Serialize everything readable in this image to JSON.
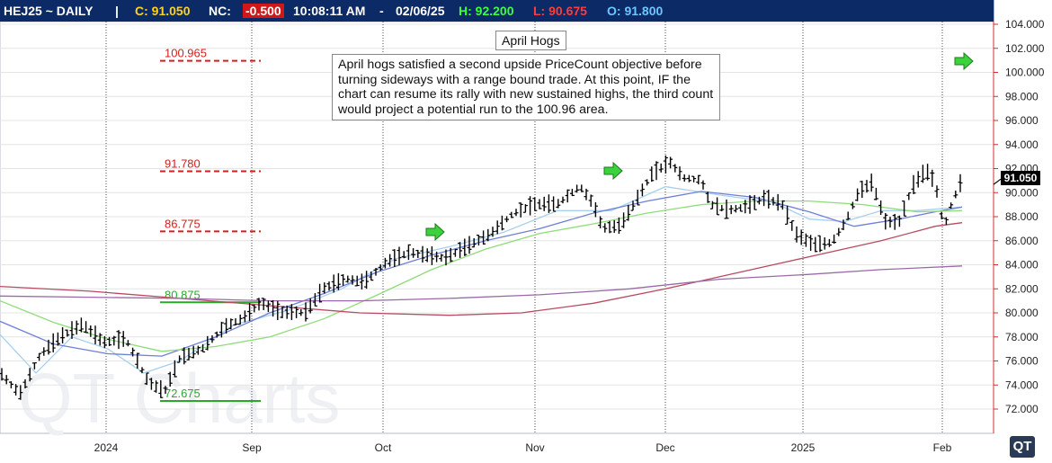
{
  "header": {
    "symbol": "HEJ25 ~ DAILY",
    "sep1": "|",
    "close": "C: 91.050",
    "nc_label": "NC:",
    "nc_value": "-0.500",
    "time": "10:08:11 AM",
    "sep2": "-",
    "date": "02/06/25",
    "high": "H: 92.200",
    "low": "L: 90.675",
    "open": "O: 91.800"
  },
  "chart_title": "April Hogs",
  "annotation": "April hogs satisfied a second upside PriceCount objective before turning sideways with a range bound trade.  At this point, IF the chart can resume its rally with new sustained highs, the third count would project a potential run to the 100.96 area.",
  "watermark": "QT Charts",
  "logo_text": "QT",
  "last_price_label": "91.050",
  "colors": {
    "header_bg": "#0b2a66",
    "close": "#ffd21a",
    "nc_value_bg": "#d01818",
    "high": "#3cff3c",
    "low": "#ff3c3c",
    "open": "#6ec6ff",
    "objective_red": "#d22020",
    "objective_green": "#2aa82a",
    "arrow": "#3cd23c"
  },
  "chart_data": {
    "type": "bar",
    "y_axis_ticks": [
      "104.000",
      "102.000",
      "100.000",
      "98.000",
      "96.000",
      "94.000",
      "92.000",
      "90.000",
      "88.000",
      "86.000",
      "84.000",
      "82.000",
      "80.000",
      "78.000",
      "76.000",
      "74.000",
      "72.000"
    ],
    "x_tick_labels": [
      "2024",
      "Sep",
      "Oct",
      "Nov",
      "Dec",
      "2025",
      "Feb"
    ],
    "ylim": [
      71,
      106
    ],
    "grid": true,
    "objective_lines": [
      {
        "label": "100.965",
        "value": 100.965,
        "color": "red",
        "style": "dashed"
      },
      {
        "label": "91.780",
        "value": 91.78,
        "color": "red",
        "style": "dashed"
      },
      {
        "label": "86.775",
        "value": 86.775,
        "color": "red",
        "style": "dashed"
      },
      {
        "label": "80.875",
        "value": 80.875,
        "color": "green",
        "style": "solid"
      },
      {
        "label": "72.675",
        "value": 72.675,
        "color": "green",
        "style": "solid"
      }
    ],
    "last_price": 91.05,
    "price_path": [
      [
        0,
        75.0
      ],
      [
        22,
        73.2
      ],
      [
        45,
        76.5
      ],
      [
        68,
        78.0
      ],
      [
        92,
        79.0
      ],
      [
        115,
        77.5
      ],
      [
        140,
        77.8
      ],
      [
        165,
        74.2
      ],
      [
        183,
        73.4
      ],
      [
        200,
        76.2
      ],
      [
        225,
        77.0
      ],
      [
        250,
        78.8
      ],
      [
        270,
        79.5
      ],
      [
        290,
        80.8
      ],
      [
        312,
        80.0
      ],
      [
        340,
        80.0
      ],
      [
        360,
        82.0
      ],
      [
        385,
        82.8
      ],
      [
        405,
        82.5
      ],
      [
        430,
        84.2
      ],
      [
        455,
        85.0
      ],
      [
        470,
        84.8
      ],
      [
        495,
        84.5
      ],
      [
        520,
        85.5
      ],
      [
        545,
        86.5
      ],
      [
        570,
        88.2
      ],
      [
        595,
        89.0
      ],
      [
        620,
        89.0
      ],
      [
        645,
        90.5
      ],
      [
        660,
        89.0
      ],
      [
        670,
        87.0
      ],
      [
        690,
        87.2
      ],
      [
        705,
        89.0
      ],
      [
        725,
        91.5
      ],
      [
        745,
        92.5
      ],
      [
        760,
        91.2
      ],
      [
        780,
        91.0
      ],
      [
        790,
        89.0
      ],
      [
        810,
        88.5
      ],
      [
        830,
        88.8
      ],
      [
        850,
        89.5
      ],
      [
        870,
        89.0
      ],
      [
        885,
        86.5
      ],
      [
        905,
        85.6
      ],
      [
        925,
        85.8
      ],
      [
        940,
        87.5
      ],
      [
        955,
        90.0
      ],
      [
        970,
        90.8
      ],
      [
        985,
        87.5
      ],
      [
        1000,
        87.5
      ],
      [
        1015,
        90.5
      ],
      [
        1030,
        91.8
      ],
      [
        1040,
        90.8
      ],
      [
        1050,
        87.0
      ],
      [
        1058,
        89.0
      ],
      [
        1070,
        91.05
      ]
    ],
    "moving_averages": [
      {
        "color": "light-blue",
        "points": [
          [
            0,
            78.2
          ],
          [
            40,
            75.0
          ],
          [
            80,
            78.0
          ],
          [
            120,
            77.0
          ],
          [
            160,
            75.0
          ],
          [
            200,
            76.0
          ],
          [
            260,
            79.0
          ],
          [
            320,
            80.2
          ],
          [
            380,
            82.0
          ],
          [
            440,
            84.5
          ],
          [
            500,
            85.5
          ],
          [
            560,
            86.7
          ],
          [
            620,
            88.5
          ],
          [
            680,
            88.5
          ],
          [
            740,
            90.5
          ],
          [
            800,
            89.8
          ],
          [
            860,
            89.2
          ],
          [
            900,
            87.8
          ],
          [
            940,
            87.6
          ],
          [
            980,
            88.5
          ],
          [
            1020,
            88.5
          ],
          [
            1070,
            88.8
          ]
        ]
      },
      {
        "color": "blue",
        "points": [
          [
            0,
            79.3
          ],
          [
            60,
            77.4
          ],
          [
            120,
            76.6
          ],
          [
            180,
            76.4
          ],
          [
            240,
            78.0
          ],
          [
            300,
            80.0
          ],
          [
            360,
            81.6
          ],
          [
            420,
            83.4
          ],
          [
            480,
            84.8
          ],
          [
            540,
            86.0
          ],
          [
            600,
            87.0
          ],
          [
            660,
            88.3
          ],
          [
            720,
            89.3
          ],
          [
            780,
            90.1
          ],
          [
            840,
            89.6
          ],
          [
            900,
            88.4
          ],
          [
            950,
            87.2
          ],
          [
            1000,
            87.8
          ],
          [
            1040,
            88.4
          ],
          [
            1070,
            88.8
          ]
        ]
      },
      {
        "color": "green",
        "points": [
          [
            0,
            81.0
          ],
          [
            60,
            79.2
          ],
          [
            120,
            77.8
          ],
          [
            180,
            76.8
          ],
          [
            240,
            77.2
          ],
          [
            300,
            78.0
          ],
          [
            360,
            79.5
          ],
          [
            420,
            81.5
          ],
          [
            480,
            83.6
          ],
          [
            540,
            85.3
          ],
          [
            600,
            86.6
          ],
          [
            660,
            87.4
          ],
          [
            720,
            88.3
          ],
          [
            780,
            89.0
          ],
          [
            840,
            89.3
          ],
          [
            900,
            89.3
          ],
          [
            960,
            89.0
          ],
          [
            1020,
            88.4
          ],
          [
            1070,
            88.5
          ]
        ]
      },
      {
        "color": "dark-red",
        "points": [
          [
            0,
            82.2
          ],
          [
            100,
            81.8
          ],
          [
            200,
            81.2
          ],
          [
            300,
            80.6
          ],
          [
            400,
            80.0
          ],
          [
            500,
            79.8
          ],
          [
            580,
            80.0
          ],
          [
            660,
            80.8
          ],
          [
            740,
            82.0
          ],
          [
            800,
            83.0
          ],
          [
            860,
            84.0
          ],
          [
            920,
            85.0
          ],
          [
            980,
            86.0
          ],
          [
            1040,
            87.2
          ],
          [
            1070,
            87.5
          ]
        ]
      },
      {
        "color": "purple",
        "points": [
          [
            0,
            81.4
          ],
          [
            100,
            81.3
          ],
          [
            200,
            81.2
          ],
          [
            300,
            81.0
          ],
          [
            400,
            81.0
          ],
          [
            500,
            81.2
          ],
          [
            600,
            81.5
          ],
          [
            700,
            82.0
          ],
          [
            800,
            82.8
          ],
          [
            900,
            83.2
          ],
          [
            980,
            83.6
          ],
          [
            1070,
            83.9
          ]
        ]
      }
    ]
  }
}
